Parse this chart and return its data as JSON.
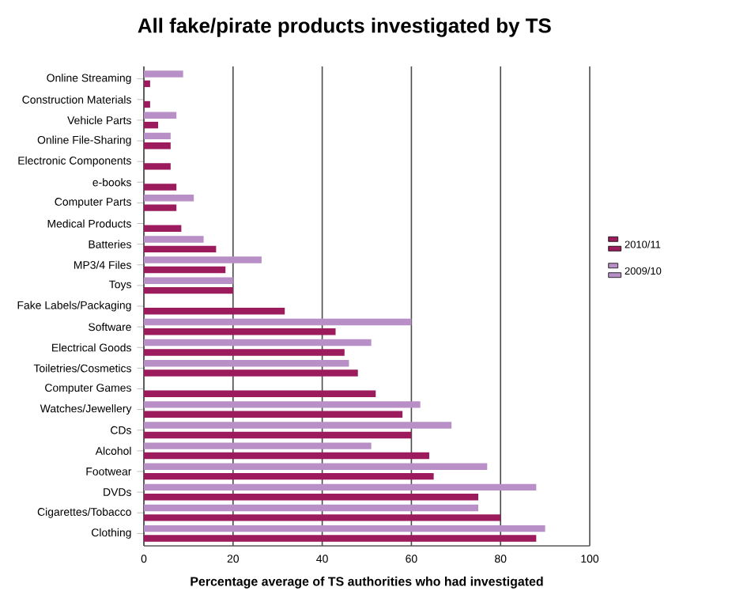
{
  "chart_data": {
    "type": "bar",
    "orientation": "horizontal",
    "title": "All fake/pirate products investigated by TS",
    "xlabel": "Percentage average of TS authorities who had investigated",
    "categories": [
      "Online Streaming",
      "Construction Materials",
      "Vehicle Parts",
      "Online File-Sharing",
      "Electronic Components",
      "e-books",
      "Computer Parts",
      "Medical Products",
      "Batteries",
      "MP3/4 Files",
      "Toys",
      "Fake Labels/Packaging",
      "Software",
      "Electrical Goods",
      "Toiletries/Cosmetics",
      "Computer Games",
      "Watches/Jewellery",
      "CDs",
      "Alcohol",
      "Footwear",
      "DVDs",
      "Cigarettes/Tobacco",
      "Clothing"
    ],
    "series": [
      {
        "name": "2010/11",
        "color": "#9b1b5c",
        "values": [
          1.4,
          1.4,
          3.2,
          6,
          6,
          7.3,
          7.3,
          8.4,
          16.2,
          18.3,
          20,
          31.6,
          43,
          45,
          48,
          52,
          58,
          60,
          64,
          65,
          75,
          80,
          88
        ]
      },
      {
        "name": "2009/10",
        "color": "#b88fc6",
        "values": [
          8.8,
          null,
          7.3,
          6,
          null,
          null,
          11.2,
          null,
          13.4,
          26.4,
          20,
          null,
          60,
          51,
          46,
          null,
          62,
          69,
          51,
          77,
          88,
          75,
          90
        ]
      }
    ],
    "xlim": [
      0,
      100
    ],
    "xticks": [
      0,
      20,
      40,
      60,
      80,
      100
    ],
    "grid": "x",
    "legend": "right"
  }
}
